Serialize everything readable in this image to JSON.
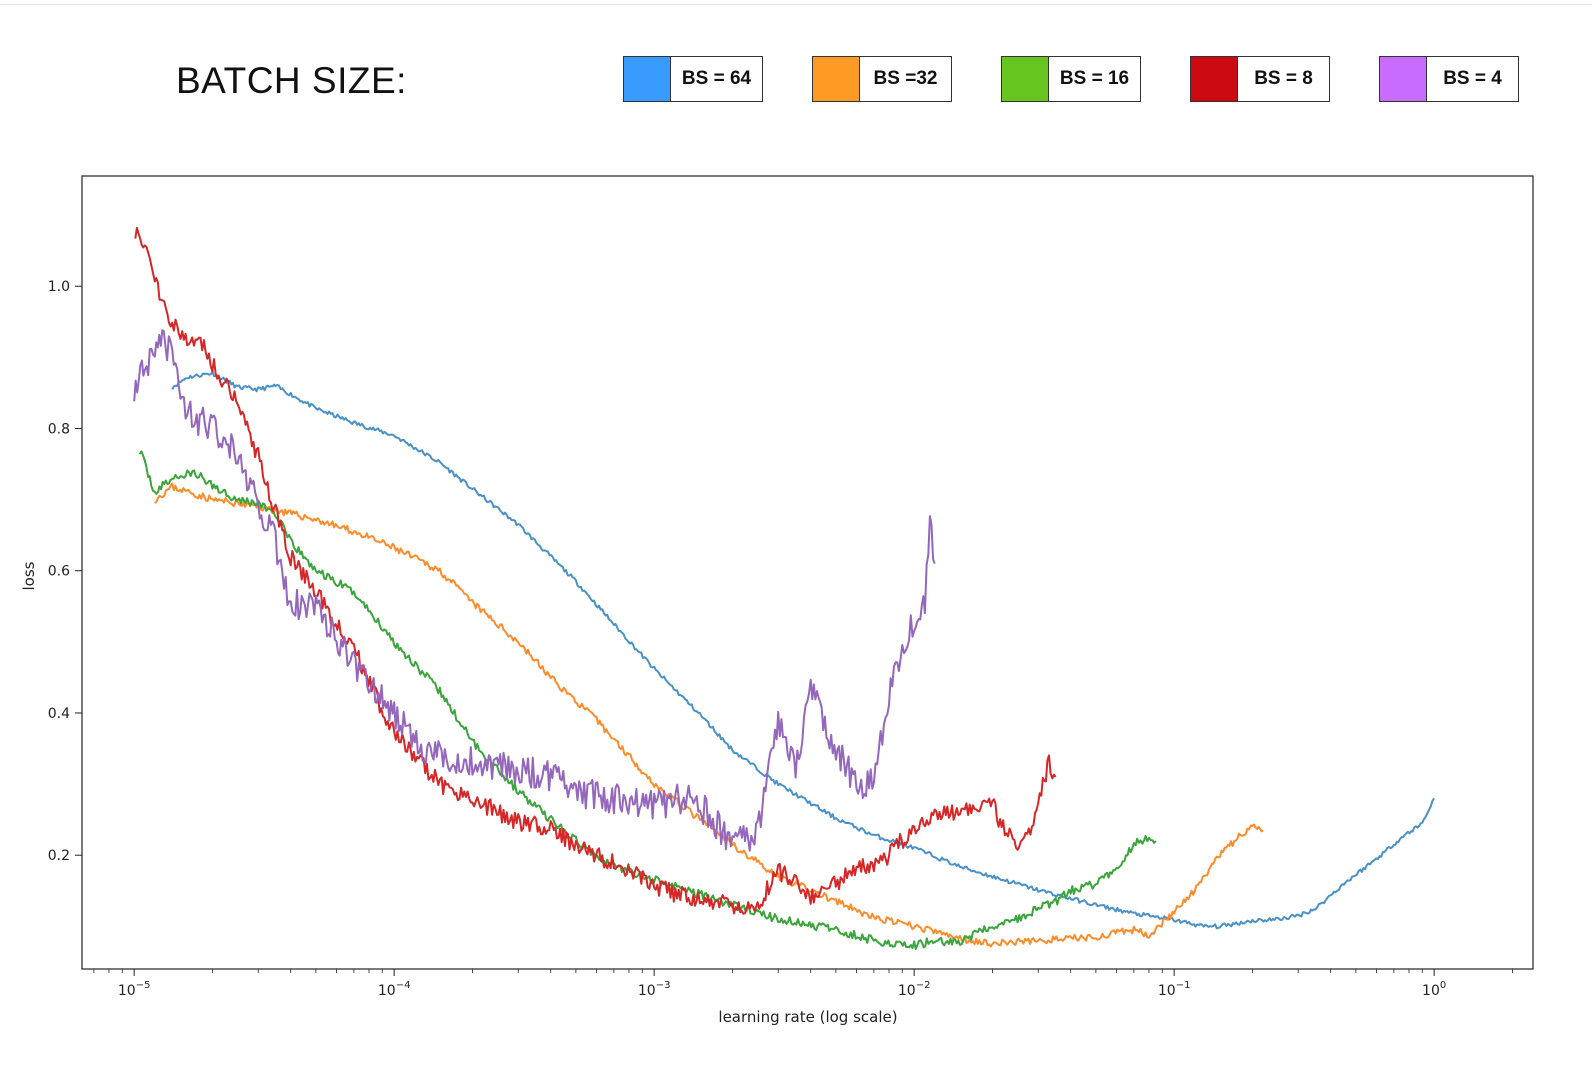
{
  "legend": {
    "title": "BATCH SIZE:",
    "items": [
      {
        "label": "BS = 64",
        "color": "#3a9bff"
      },
      {
        "label": "BS =32",
        "color": "#ff9a26"
      },
      {
        "label": "BS = 16",
        "color": "#66c61f"
      },
      {
        "label": "BS = 8",
        "color": "#cc0a12"
      },
      {
        "label": "BS = 4",
        "color": "#c86bff"
      }
    ]
  },
  "chart_data": {
    "type": "line",
    "title": "",
    "xlabel": "learning rate (log scale)",
    "ylabel": "loss",
    "xscale": "log",
    "xlim": [
      6.3e-06,
      2.4
    ],
    "ylim": [
      0.04,
      1.155
    ],
    "xticks": [
      {
        "value": 1e-05,
        "base": "10",
        "exp": "−5"
      },
      {
        "value": 0.0001,
        "base": "10",
        "exp": "−4"
      },
      {
        "value": 0.001,
        "base": "10",
        "exp": "−3"
      },
      {
        "value": 0.01,
        "base": "10",
        "exp": "−2"
      },
      {
        "value": 0.1,
        "base": "10",
        "exp": "−1"
      },
      {
        "value": 1,
        "base": "10",
        "exp": "0"
      }
    ],
    "yticks": [
      {
        "value": 0.2,
        "label": "0.2"
      },
      {
        "value": 0.4,
        "label": "0.4"
      },
      {
        "value": 0.6,
        "label": "0.6"
      },
      {
        "value": 0.8,
        "label": "0.8"
      },
      {
        "value": 1.0,
        "label": "1.0"
      }
    ],
    "grid": false,
    "series": [
      {
        "name": "BS = 64",
        "color": "#4a90c9",
        "noise": 0.003,
        "seed": 11,
        "points": [
          [
            1.4e-05,
            0.858
          ],
          [
            1.6e-05,
            0.872
          ],
          [
            2e-05,
            0.878
          ],
          [
            2.5e-05,
            0.858
          ],
          [
            3e-05,
            0.855
          ],
          [
            3.5e-05,
            0.86
          ],
          [
            4e-05,
            0.848
          ],
          [
            5e-05,
            0.828
          ],
          [
            7e-05,
            0.808
          ],
          [
            0.0001,
            0.79
          ],
          [
            0.00015,
            0.752
          ],
          [
            0.0002,
            0.715
          ],
          [
            0.0003,
            0.665
          ],
          [
            0.0005,
            0.585
          ],
          [
            0.0007,
            0.525
          ],
          [
            0.001,
            0.462
          ],
          [
            0.0015,
            0.398
          ],
          [
            0.002,
            0.348
          ],
          [
            0.003,
            0.3
          ],
          [
            0.005,
            0.252
          ],
          [
            0.007,
            0.228
          ],
          [
            0.01,
            0.21
          ],
          [
            0.015,
            0.184
          ],
          [
            0.02,
            0.17
          ],
          [
            0.03,
            0.151
          ],
          [
            0.05,
            0.13
          ],
          [
            0.07,
            0.118
          ],
          [
            0.1,
            0.109
          ],
          [
            0.13,
            0.1
          ],
          [
            0.15,
            0.1
          ],
          [
            0.2,
            0.108
          ],
          [
            0.25,
            0.11
          ],
          [
            0.3,
            0.115
          ],
          [
            0.35,
            0.125
          ],
          [
            0.45,
            0.16
          ],
          [
            0.6,
            0.195
          ],
          [
            0.75,
            0.225
          ],
          [
            0.9,
            0.245
          ],
          [
            1.0,
            0.28
          ]
        ]
      },
      {
        "name": "BS =32",
        "color": "#ff8c2b",
        "noise": 0.005,
        "seed": 23,
        "points": [
          [
            1.2e-05,
            0.7
          ],
          [
            1.4e-05,
            0.718
          ],
          [
            2e-05,
            0.7
          ],
          [
            3e-05,
            0.69
          ],
          [
            3.5e-05,
            0.685
          ],
          [
            5e-05,
            0.672
          ],
          [
            7e-05,
            0.655
          ],
          [
            0.0001,
            0.632
          ],
          [
            0.00015,
            0.6
          ],
          [
            0.0002,
            0.555
          ],
          [
            0.0003,
            0.5
          ],
          [
            0.0004,
            0.45
          ],
          [
            0.0006,
            0.39
          ],
          [
            0.0008,
            0.34
          ],
          [
            0.001,
            0.3
          ],
          [
            0.0015,
            0.25
          ],
          [
            0.002,
            0.215
          ],
          [
            0.003,
            0.17
          ],
          [
            0.005,
            0.135
          ],
          [
            0.007,
            0.112
          ],
          [
            0.01,
            0.1
          ],
          [
            0.015,
            0.083
          ],
          [
            0.02,
            0.076
          ],
          [
            0.03,
            0.08
          ],
          [
            0.05,
            0.085
          ],
          [
            0.07,
            0.095
          ],
          [
            0.08,
            0.088
          ],
          [
            0.1,
            0.12
          ],
          [
            0.12,
            0.15
          ],
          [
            0.15,
            0.2
          ],
          [
            0.18,
            0.228
          ],
          [
            0.2,
            0.24
          ],
          [
            0.22,
            0.235
          ]
        ]
      },
      {
        "name": "BS = 16",
        "color": "#3aa53a",
        "noise": 0.006,
        "seed": 37,
        "points": [
          [
            1.05e-05,
            0.77
          ],
          [
            1.2e-05,
            0.71
          ],
          [
            1.4e-05,
            0.73
          ],
          [
            1.7e-05,
            0.738
          ],
          [
            2e-05,
            0.72
          ],
          [
            2.5e-05,
            0.7
          ],
          [
            3e-05,
            0.695
          ],
          [
            3.5e-05,
            0.68
          ],
          [
            4e-05,
            0.64
          ],
          [
            5e-05,
            0.6
          ],
          [
            7e-05,
            0.57
          ],
          [
            0.0001,
            0.5
          ],
          [
            0.00015,
            0.43
          ],
          [
            0.0002,
            0.36
          ],
          [
            0.0003,
            0.29
          ],
          [
            0.0005,
            0.22
          ],
          [
            0.0007,
            0.185
          ],
          [
            0.001,
            0.165
          ],
          [
            0.0015,
            0.145
          ],
          [
            0.002,
            0.13
          ],
          [
            0.003,
            0.11
          ],
          [
            0.005,
            0.095
          ],
          [
            0.007,
            0.08
          ],
          [
            0.01,
            0.073
          ],
          [
            0.012,
            0.08
          ],
          [
            0.015,
            0.078
          ],
          [
            0.02,
            0.1
          ],
          [
            0.025,
            0.11
          ],
          [
            0.03,
            0.125
          ],
          [
            0.035,
            0.135
          ],
          [
            0.04,
            0.15
          ],
          [
            0.05,
            0.16
          ],
          [
            0.06,
            0.18
          ],
          [
            0.07,
            0.215
          ],
          [
            0.08,
            0.225
          ],
          [
            0.085,
            0.22
          ]
        ]
      },
      {
        "name": "BS = 8",
        "color": "#d62728",
        "noise": 0.013,
        "seed": 51,
        "points": [
          [
            1.01e-05,
            1.08
          ],
          [
            1.1e-05,
            1.06
          ],
          [
            1.2e-05,
            1.01
          ],
          [
            1.4e-05,
            0.95
          ],
          [
            1.6e-05,
            0.92
          ],
          [
            1.8e-05,
            0.925
          ],
          [
            2e-05,
            0.89
          ],
          [
            2.5e-05,
            0.84
          ],
          [
            3e-05,
            0.76
          ],
          [
            3.5e-05,
            0.68
          ],
          [
            4e-05,
            0.62
          ],
          [
            5e-05,
            0.57
          ],
          [
            7e-05,
            0.49
          ],
          [
            0.0001,
            0.37
          ],
          [
            0.00015,
            0.3
          ],
          [
            0.0002,
            0.28
          ],
          [
            0.0003,
            0.245
          ],
          [
            0.0004,
            0.24
          ],
          [
            0.0005,
            0.21
          ],
          [
            0.0007,
            0.19
          ],
          [
            0.001,
            0.155
          ],
          [
            0.0015,
            0.135
          ],
          [
            0.002,
            0.13
          ],
          [
            0.0025,
            0.128
          ],
          [
            0.003,
            0.18
          ],
          [
            0.004,
            0.14
          ],
          [
            0.005,
            0.16
          ],
          [
            0.006,
            0.18
          ],
          [
            0.007,
            0.185
          ],
          [
            0.008,
            0.2
          ],
          [
            0.01,
            0.24
          ],
          [
            0.012,
            0.255
          ],
          [
            0.015,
            0.26
          ],
          [
            0.02,
            0.27
          ],
          [
            0.022,
            0.24
          ],
          [
            0.025,
            0.21
          ],
          [
            0.028,
            0.23
          ],
          [
            0.03,
            0.28
          ],
          [
            0.033,
            0.33
          ],
          [
            0.035,
            0.31
          ]
        ]
      },
      {
        "name": "BS = 4",
        "color": "#9467bd",
        "noise": 0.022,
        "seed": 73,
        "points": [
          [
            1e-05,
            0.86
          ],
          [
            1.1e-05,
            0.88
          ],
          [
            1.2e-05,
            0.9
          ],
          [
            1.3e-05,
            0.92
          ],
          [
            1.4e-05,
            0.9
          ],
          [
            1.6e-05,
            0.82
          ],
          [
            2e-05,
            0.8
          ],
          [
            2.5e-05,
            0.77
          ],
          [
            3e-05,
            0.69
          ],
          [
            3.5e-05,
            0.64
          ],
          [
            4e-05,
            0.55
          ],
          [
            5e-05,
            0.56
          ],
          [
            6e-05,
            0.5
          ],
          [
            7e-05,
            0.47
          ],
          [
            8e-05,
            0.44
          ],
          [
            0.0001,
            0.4
          ],
          [
            0.00012,
            0.36
          ],
          [
            0.00015,
            0.34
          ],
          [
            0.0002,
            0.33
          ],
          [
            0.0003,
            0.32
          ],
          [
            0.0004,
            0.31
          ],
          [
            0.0005,
            0.29
          ],
          [
            0.0007,
            0.28
          ],
          [
            0.001,
            0.27
          ],
          [
            0.0013,
            0.28
          ],
          [
            0.0015,
            0.27
          ],
          [
            0.002,
            0.22
          ],
          [
            0.0025,
            0.23
          ],
          [
            0.003,
            0.39
          ],
          [
            0.0035,
            0.33
          ],
          [
            0.004,
            0.43
          ],
          [
            0.005,
            0.35
          ],
          [
            0.006,
            0.3
          ],
          [
            0.007,
            0.3
          ],
          [
            0.008,
            0.42
          ],
          [
            0.009,
            0.5
          ],
          [
            0.01,
            0.53
          ],
          [
            0.011,
            0.56
          ],
          [
            0.0115,
            0.67
          ],
          [
            0.012,
            0.61
          ]
        ]
      }
    ]
  }
}
